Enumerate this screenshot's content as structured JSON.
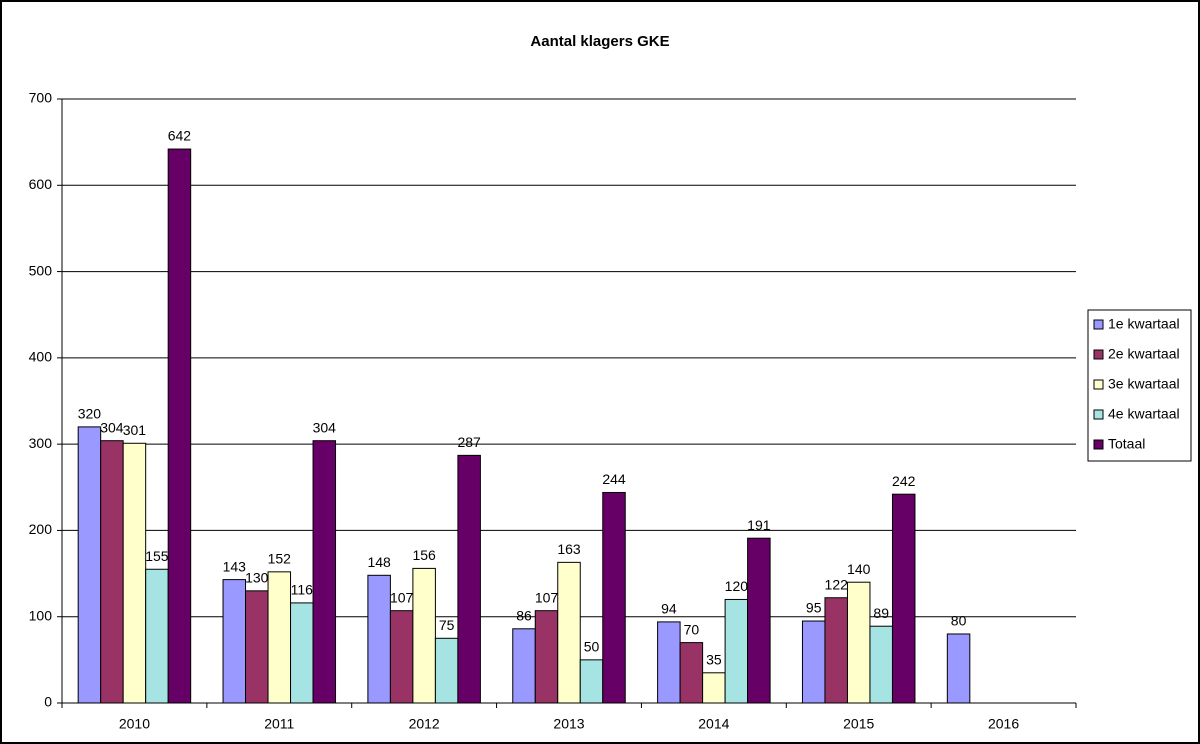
{
  "chart_data": {
    "type": "bar",
    "title": "Aantal klagers GKE",
    "categories": [
      "2010",
      "2011",
      "2012",
      "2013",
      "2014",
      "2015",
      "2016"
    ],
    "series": [
      {
        "name": "1e kwartaal",
        "color": "#9999ff",
        "values": [
          320,
          143,
          148,
          86,
          94,
          95,
          80
        ]
      },
      {
        "name": "2e kwartaal",
        "color": "#993366",
        "values": [
          304,
          130,
          107,
          107,
          70,
          122,
          null
        ]
      },
      {
        "name": "3e kwartaal",
        "color": "#ffffcc",
        "values": [
          301,
          152,
          156,
          163,
          35,
          140,
          null
        ]
      },
      {
        "name": "4e kwartaal",
        "color": "#a6e3e3",
        "values": [
          155,
          116,
          75,
          50,
          120,
          89,
          null
        ]
      },
      {
        "name": "Totaal",
        "color": "#660066",
        "values": [
          642,
          304,
          287,
          244,
          191,
          242,
          null
        ]
      }
    ],
    "ylim": [
      0,
      700
    ],
    "yticks": [
      0,
      100,
      200,
      300,
      400,
      500,
      600,
      700
    ],
    "grid": true,
    "legend": "right"
  }
}
